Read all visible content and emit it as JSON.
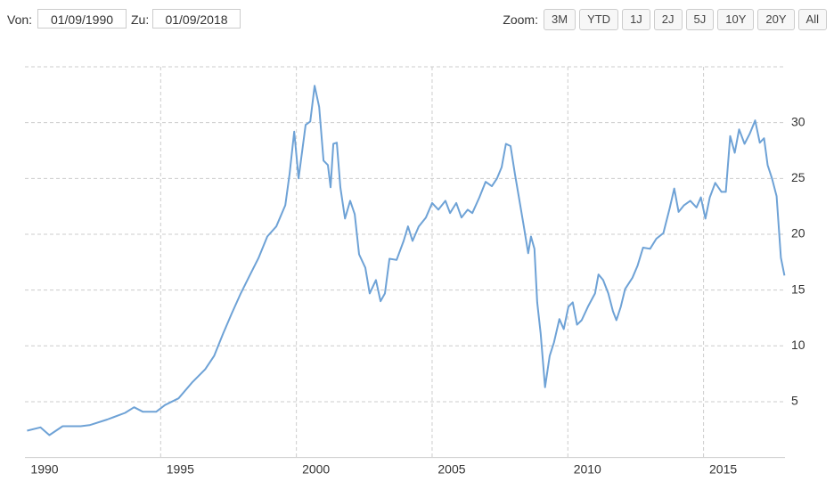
{
  "controls": {
    "from_label": "Von:",
    "from_value": "01/09/1990",
    "to_label": "Zu:",
    "to_value": "01/09/2018",
    "zoom_label": "Zoom:",
    "zoom_buttons": [
      "3M",
      "YTD",
      "1J",
      "2J",
      "5J",
      "10Y",
      "20Y",
      "All"
    ]
  },
  "chart_data": {
    "type": "line",
    "color": "#6ea2d6",
    "grid": true,
    "xlim": [
      1990,
      2018
    ],
    "xticks": [
      1990,
      1995,
      2000,
      2005,
      2010,
      2015
    ],
    "ylim": [
      0,
      35
    ],
    "yticks": [
      5,
      10,
      15,
      20,
      25,
      30
    ],
    "x": [
      1990.08,
      1990.57,
      1990.9,
      1991.39,
      1992.05,
      1992.38,
      1993.03,
      1993.69,
      1994.02,
      1994.34,
      1994.84,
      1995.16,
      1995.66,
      1996.15,
      1996.64,
      1996.97,
      1997.3,
      1997.62,
      1997.95,
      1998.28,
      1998.61,
      1998.93,
      1999.26,
      1999.59,
      1999.75,
      1999.92,
      2000.08,
      2000.34,
      2000.51,
      2000.67,
      2000.84,
      2001.0,
      2001.16,
      2001.26,
      2001.36,
      2001.49,
      2001.62,
      2001.79,
      2001.98,
      2002.15,
      2002.31,
      2002.54,
      2002.7,
      2002.93,
      2003.1,
      2003.26,
      2003.43,
      2003.69,
      2003.95,
      2004.11,
      2004.28,
      2004.51,
      2004.77,
      2005.0,
      2005.23,
      2005.49,
      2005.66,
      2005.89,
      2006.08,
      2006.31,
      2006.48,
      2006.74,
      2006.97,
      2007.2,
      2007.39,
      2007.56,
      2007.72,
      2007.89,
      2008.05,
      2008.21,
      2008.38,
      2008.54,
      2008.64,
      2008.77,
      2008.87,
      2009.0,
      2009.16,
      2009.33,
      2009.49,
      2009.69,
      2009.85,
      2010.02,
      2010.18,
      2010.34,
      2010.51,
      2010.74,
      2011.0,
      2011.13,
      2011.3,
      2011.49,
      2011.66,
      2011.79,
      2011.95,
      2012.11,
      2012.38,
      2012.57,
      2012.77,
      2013.03,
      2013.26,
      2013.52,
      2013.75,
      2013.92,
      2014.08,
      2014.28,
      2014.51,
      2014.74,
      2014.9,
      2015.07,
      2015.23,
      2015.43,
      2015.66,
      2015.82,
      2015.98,
      2016.15,
      2016.31,
      2016.51,
      2016.7,
      2016.9,
      2017.07,
      2017.23,
      2017.36,
      2017.52,
      2017.69,
      2017.85,
      2017.98
    ],
    "values": [
      2.4,
      2.7,
      2.0,
      2.8,
      2.8,
      2.9,
      3.4,
      4.0,
      4.5,
      4.1,
      4.1,
      4.7,
      5.3,
      6.7,
      7.9,
      9.1,
      11.1,
      12.9,
      14.7,
      16.3,
      17.9,
      19.8,
      20.7,
      22.6,
      25.4,
      29.2,
      25.0,
      29.8,
      30.1,
      33.3,
      31.4,
      26.6,
      26.2,
      24.2,
      28.1,
      28.2,
      24.2,
      21.4,
      23.0,
      21.8,
      18.2,
      17.0,
      14.7,
      15.9,
      14.0,
      14.7,
      17.8,
      17.7,
      19.4,
      20.7,
      19.4,
      20.7,
      21.5,
      22.8,
      22.2,
      23.0,
      21.9,
      22.8,
      21.5,
      22.2,
      21.9,
      23.3,
      24.7,
      24.3,
      25.0,
      26.0,
      28.1,
      27.9,
      25.4,
      23.1,
      20.7,
      18.3,
      19.8,
      18.7,
      13.9,
      11.1,
      6.3,
      9.1,
      10.3,
      12.4,
      11.5,
      13.5,
      13.9,
      11.9,
      12.3,
      13.5,
      14.7,
      16.4,
      15.9,
      14.7,
      13.1,
      12.3,
      13.5,
      15.1,
      16.1,
      17.2,
      18.8,
      18.7,
      19.6,
      20.1,
      22.3,
      24.1,
      22.0,
      22.6,
      23.0,
      22.4,
      23.3,
      21.4,
      23.3,
      24.6,
      23.8,
      23.8,
      28.8,
      27.3,
      29.4,
      28.1,
      29.0,
      30.2,
      28.2,
      28.6,
      26.2,
      25.0,
      23.4,
      17.9,
      16.3
    ]
  }
}
